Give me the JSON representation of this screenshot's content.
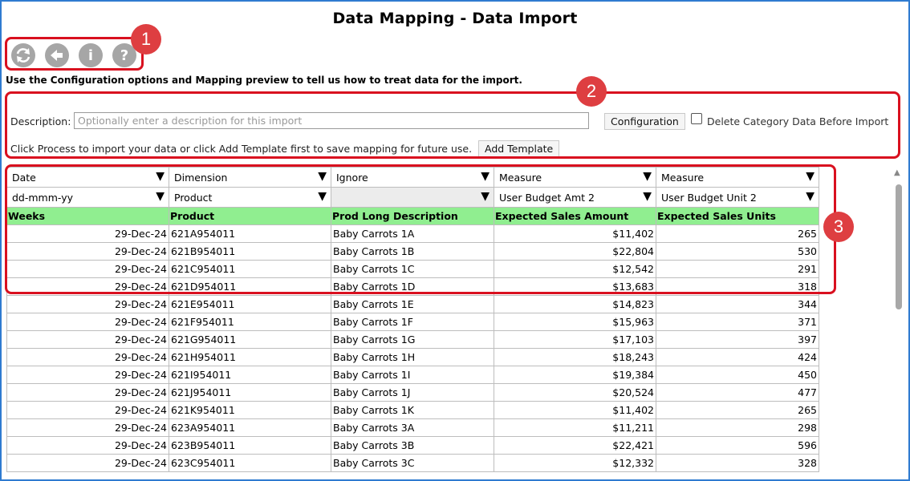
{
  "page": {
    "title": "Data Mapping - Data Import"
  },
  "toolbar": {
    "buttons": [
      {
        "name": "refresh-icon"
      },
      {
        "name": "back-arrow-icon"
      },
      {
        "name": "info-icon",
        "glyph": "i"
      },
      {
        "name": "help-icon",
        "glyph": "?"
      }
    ]
  },
  "intro": {
    "text": "Use the Configuration options and Mapping preview to tell us how to treat data for the import."
  },
  "form": {
    "description_label": "Description:",
    "description_value": "",
    "description_placeholder": "Optionally enter a description for this import",
    "configuration_button": "Configuration",
    "delete_checkbox_label": "Delete Category Data Before Import",
    "delete_checkbox_checked": false,
    "process_text": "Click Process to import your data or click Add Template first to save mapping for future use.",
    "add_template_button": "Add Template"
  },
  "mapping": {
    "type_selects": [
      "Date",
      "Dimension",
      "Ignore",
      "Measure",
      "Measure"
    ],
    "sub_selects": [
      "dd-mmm-yy",
      "Product",
      "",
      "User Budget Amt 2",
      "User Budget Unit 2"
    ]
  },
  "table": {
    "headers": [
      "Weeks",
      "Product",
      "Prod Long Description",
      "Expected Sales Amount",
      "Expected Sales Units"
    ],
    "rows": [
      [
        "29-Dec-24",
        "621A954011",
        "Baby Carrots 1A",
        "$11,402",
        "265"
      ],
      [
        "29-Dec-24",
        "621B954011",
        "Baby Carrots 1B",
        "$22,804",
        "530"
      ],
      [
        "29-Dec-24",
        "621C954011",
        "Baby Carrots 1C",
        "$12,542",
        "291"
      ],
      [
        "29-Dec-24",
        "621D954011",
        "Baby Carrots 1D",
        "$13,683",
        "318"
      ],
      [
        "29-Dec-24",
        "621E954011",
        "Baby Carrots 1E",
        "$14,823",
        "344"
      ],
      [
        "29-Dec-24",
        "621F954011",
        "Baby Carrots 1F",
        "$15,963",
        "371"
      ],
      [
        "29-Dec-24",
        "621G954011",
        "Baby Carrots 1G",
        "$17,103",
        "397"
      ],
      [
        "29-Dec-24",
        "621H954011",
        "Baby Carrots 1H",
        "$18,243",
        "424"
      ],
      [
        "29-Dec-24",
        "621I954011",
        "Baby Carrots 1I",
        "$19,384",
        "450"
      ],
      [
        "29-Dec-24",
        "621J954011",
        "Baby Carrots 1J",
        "$20,524",
        "477"
      ],
      [
        "29-Dec-24",
        "621K954011",
        "Baby Carrots 1K",
        "$11,402",
        "265"
      ],
      [
        "29-Dec-24",
        "623A954011",
        "Baby Carrots 3A",
        "$11,211",
        "298"
      ],
      [
        "29-Dec-24",
        "623B954011",
        "Baby Carrots 3B",
        "$22,421",
        "596"
      ],
      [
        "29-Dec-24",
        "623C954011",
        "Baby Carrots 3C",
        "$12,332",
        "328"
      ]
    ]
  },
  "callouts": [
    "1",
    "2",
    "3"
  ],
  "colors": {
    "frame": "#2f7bd0",
    "callout": "#d9101f",
    "header_bg": "#90ee90",
    "icon": "#a6a6a6"
  }
}
